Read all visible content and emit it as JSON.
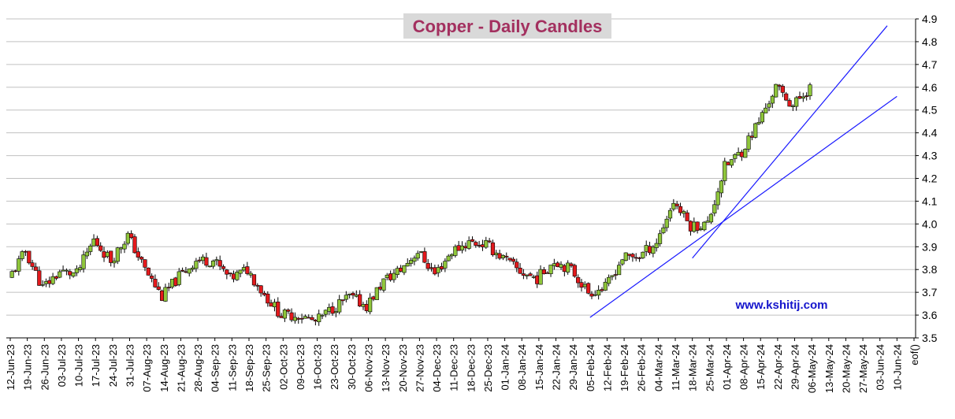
{
  "chart_data": {
    "type": "candlestick",
    "title": "Copper - Daily Candles",
    "watermark": "www.kshitij.com",
    "ylim": [
      3.5,
      4.9
    ],
    "y_ticks": [
      "3.5",
      "3.6",
      "3.7",
      "3.8",
      "3.9",
      "4.0",
      "4.1",
      "4.2",
      "4.3",
      "4.4",
      "4.5",
      "4.6",
      "4.7",
      "4.8",
      "4.9"
    ],
    "x_ticks": [
      "12-Jun-23",
      "19-Jun-23",
      "26-Jun-23",
      "03-Jul-23",
      "10-Jul-23",
      "17-Jul-23",
      "24-Jul-23",
      "31-Jul-23",
      "07-Aug-23",
      "14-Aug-23",
      "21-Aug-23",
      "28-Aug-23",
      "04-Sep-23",
      "11-Sep-23",
      "18-Sep-23",
      "25-Sep-23",
      "02-Oct-23",
      "09-Oct-23",
      "16-Oct-23",
      "23-Oct-23",
      "30-Oct-23",
      "06-Nov-23",
      "13-Nov-23",
      "20-Nov-23",
      "27-Nov-23",
      "04-Dec-23",
      "11-Dec-23",
      "18-Dec-23",
      "25-Dec-23",
      "01-Jan-24",
      "08-Jan-24",
      "15-Jan-24",
      "22-Jan-24",
      "29-Jan-24",
      "05-Feb-24",
      "12-Feb-24",
      "19-Feb-24",
      "26-Feb-24",
      "04-Mar-24",
      "11-Mar-24",
      "18-Mar-24",
      "25-Mar-24",
      "01-Apr-24",
      "08-Apr-24",
      "15-Apr-24",
      "22-Apr-24",
      "29-Apr-24",
      "06-May-24",
      "13-May-24",
      "20-May-24",
      "27-May-24",
      "03-Jun-24",
      "10-Jun-24",
      "eof()"
    ],
    "weekly_close_path": [
      3.76,
      3.88,
      3.72,
      3.79,
      3.78,
      3.93,
      3.84,
      3.95,
      3.8,
      3.68,
      3.77,
      3.84,
      3.84,
      3.76,
      3.8,
      3.69,
      3.6,
      3.6,
      3.57,
      3.63,
      3.68,
      3.64,
      3.75,
      3.8,
      3.88,
      3.78,
      3.88,
      3.92,
      3.91,
      3.85,
      3.79,
      3.76,
      3.84,
      3.8,
      3.7,
      3.72,
      3.85,
      3.86,
      3.92,
      4.1,
      3.99,
      4.0,
      4.25,
      4.32,
      4.45,
      4.6,
      4.52,
      4.6
    ],
    "colors": {
      "up": "#8fc63b",
      "down": "#e3191c",
      "trendline": "#1a1aff",
      "title": "#a3305f",
      "title_bg": "#d9d9d9",
      "watermark": "#1515cc",
      "grid": "#c0c0c0"
    },
    "trendlines": [
      {
        "from": [
          "05-Feb-24",
          3.59
        ],
        "to": [
          "10-Jun-24",
          4.56
        ]
      },
      {
        "from": [
          "18-Mar-24",
          3.85
        ],
        "to": [
          "06-Jun-24",
          4.87
        ]
      }
    ]
  }
}
